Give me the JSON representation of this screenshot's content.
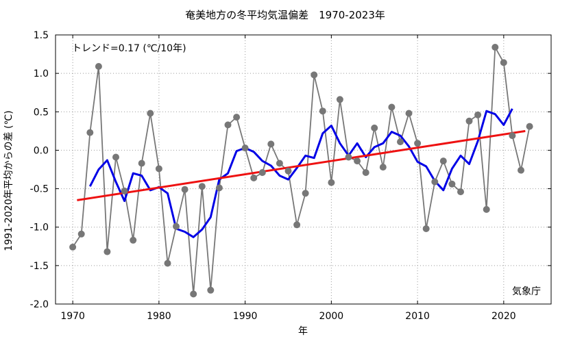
{
  "chart_data": {
    "type": "line",
    "title": "奄美地方の冬平均気温偏差　1970-2023年",
    "xlabel": "年",
    "ylabel": "1991-2020年平均からの差 (℃)",
    "xlim": [
      1968,
      2025.5
    ],
    "ylim": [
      -2.0,
      1.5
    ],
    "x_ticks": [
      1970,
      1980,
      1990,
      2000,
      2010,
      2020
    ],
    "y_ticks": [
      -2.0,
      -1.5,
      -1.0,
      -0.5,
      0.0,
      0.5,
      1.0,
      1.5
    ],
    "y_tick_labels": [
      "-2.0",
      "-1.5",
      "-1.0",
      "-0.5",
      "0.0",
      "0.5",
      "1.0",
      "1.5"
    ],
    "grid": true,
    "trend_label": "トレンド=0.17 (℃/10年)",
    "credit": "気象庁",
    "colors": {
      "annual": "#777777",
      "running_mean": "#0000e6",
      "trend": "#ee1111",
      "grid": "#999999"
    },
    "series": [
      {
        "role": "annual",
        "x": [
          1970,
          1971,
          1972,
          1973,
          1974,
          1975,
          1976,
          1977,
          1978,
          1979,
          1980,
          1981,
          1982,
          1983,
          1984,
          1985,
          1986,
          1987,
          1988,
          1989,
          1990,
          1991,
          1992,
          1993,
          1994,
          1995,
          1996,
          1997,
          1998,
          1999,
          2000,
          2001,
          2002,
          2003,
          2004,
          2005,
          2006,
          2007,
          2008,
          2009,
          2010,
          2011,
          2012,
          2013,
          2014,
          2015,
          2016,
          2017,
          2018,
          2019,
          2020,
          2021,
          2022,
          2023
        ],
        "values": [
          -1.26,
          -1.09,
          0.23,
          1.09,
          -1.32,
          -0.09,
          -0.53,
          -1.17,
          -0.17,
          0.48,
          -0.24,
          -1.47,
          -0.99,
          -0.51,
          -1.87,
          -0.47,
          -1.82,
          -0.49,
          0.33,
          0.43,
          0.03,
          -0.36,
          -0.29,
          0.08,
          -0.17,
          -0.27,
          -0.97,
          -0.56,
          0.98,
          0.51,
          -0.42,
          0.66,
          -0.09,
          -0.14,
          -0.29,
          0.29,
          -0.22,
          0.56,
          0.11,
          0.48,
          0.09,
          -1.02,
          -0.41,
          -0.14,
          -0.44,
          -0.54,
          0.38,
          0.46,
          -0.77,
          1.34,
          1.14,
          0.19,
          -0.26,
          0.31
        ]
      },
      {
        "role": "running_mean",
        "x": [
          1972,
          1973,
          1974,
          1975,
          1976,
          1977,
          1978,
          1979,
          1980,
          1981,
          1982,
          1983,
          1984,
          1985,
          1986,
          1987,
          1988,
          1989,
          1990,
          1991,
          1992,
          1993,
          1994,
          1995,
          1996,
          1997,
          1998,
          1999,
          2000,
          2001,
          2002,
          2003,
          2004,
          2005,
          2006,
          2007,
          2008,
          2009,
          2010,
          2011,
          2012,
          2013,
          2014,
          2015,
          2016,
          2017,
          2018,
          2019,
          2020,
          2021
        ],
        "values": [
          -0.47,
          -0.25,
          -0.13,
          -0.41,
          -0.66,
          -0.3,
          -0.33,
          -0.52,
          -0.48,
          -0.56,
          -1.02,
          -1.06,
          -1.13,
          -1.03,
          -0.87,
          -0.38,
          -0.3,
          -0.01,
          0.03,
          -0.02,
          -0.14,
          -0.2,
          -0.33,
          -0.38,
          -0.23,
          -0.07,
          -0.1,
          0.22,
          0.32,
          0.09,
          -0.07,
          0.09,
          -0.09,
          0.04,
          0.09,
          0.24,
          0.19,
          0.05,
          -0.15,
          -0.21,
          -0.4,
          -0.52,
          -0.24,
          -0.07,
          -0.18,
          0.12,
          0.51,
          0.47,
          0.33,
          0.54
        ]
      },
      {
        "role": "trend",
        "x": [
          1970.5,
          2022.5
        ],
        "values": [
          -0.65,
          0.25
        ]
      }
    ]
  }
}
